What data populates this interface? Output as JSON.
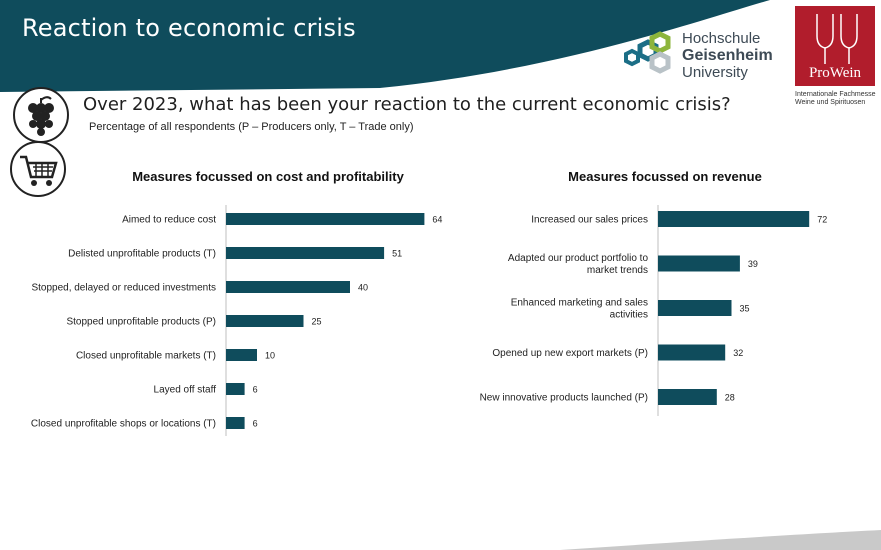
{
  "header": {
    "title": "Reaction to economic crisis",
    "logo_hgu": {
      "line1": "Hochschule",
      "line2": "Geisenheim",
      "line3": "University"
    },
    "logo_prowein": {
      "word": "ProWein",
      "caption_line1": "Internationale Fachmesse",
      "caption_line2": "Weine und Spirituosen"
    },
    "accent_color": "#0f4c5c",
    "brand_red": "#b11d2c"
  },
  "question": "Over 2023, what has been your reaction to the current economic crisis?",
  "subtitle": "Percentage of all respondents (P – Producers only, T – Trade only)",
  "icons": [
    "grape-icon",
    "shopping-cart-icon"
  ],
  "chart_data": [
    {
      "type": "bar",
      "orientation": "horizontal",
      "title": "Measures focussed on cost and profitability",
      "categories": [
        "Aimed to reduce cost",
        "Delisted unprofitable products (T)",
        "Stopped, delayed or reduced investments",
        "Stopped unprofitable products (P)",
        "Closed unprofitable markets (T)",
        "Layed off staff",
        "Closed unprofitable shops or locations (T)"
      ],
      "values": [
        64,
        51,
        40,
        25,
        10,
        6,
        6
      ],
      "bar_color": "#0f4c5c"
    },
    {
      "type": "bar",
      "orientation": "horizontal",
      "title": "Measures focussed on revenue",
      "categories": [
        [
          "Increased our sales prices"
        ],
        [
          "Adapted our product portfolio to",
          "market trends"
        ],
        [
          "Enhanced marketing and sales",
          "activities"
        ],
        [
          "Opened up new export markets (P)"
        ],
        [
          "New innovative products launched (P)"
        ]
      ],
      "values": [
        72,
        39,
        35,
        32,
        28
      ],
      "bar_color": "#0f4c5c"
    }
  ]
}
